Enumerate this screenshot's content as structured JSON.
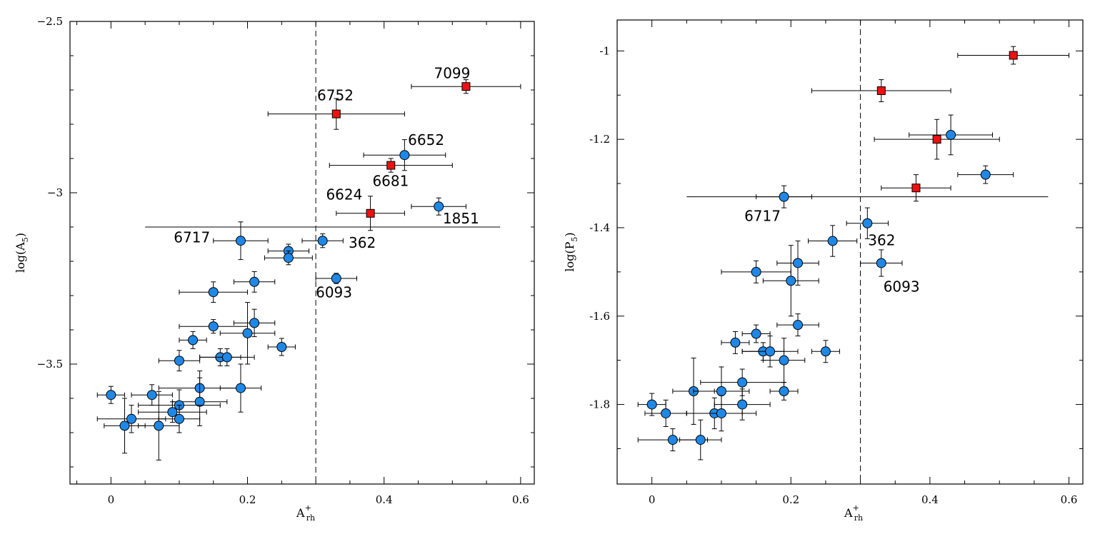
{
  "chart_data": [
    {
      "type": "scatter",
      "id": "left",
      "xlabel_main": "A",
      "xlabel_sub": "rh",
      "xlabel_sup": "+",
      "ylabel_main": "log(A",
      "ylabel_sub": "5",
      "ylabel_close": ")",
      "xlim": [
        -0.06,
        0.62
      ],
      "ylim": [
        -3.85,
        -2.5
      ],
      "xticks": [
        0,
        0.2,
        0.4,
        0.6
      ],
      "xtick_labels": [
        "0",
        "0.2",
        "0.4",
        "0.6"
      ],
      "yticks": [
        -2.5,
        -3,
        -3.5
      ],
      "ytick_labels": [
        "−2.5",
        "−3",
        "−3.5"
      ],
      "vline_x": 0.3,
      "hline": {
        "y": -3.1,
        "x0": 0.05,
        "x1": 0.57
      },
      "colors": {
        "blue": "#1f88e6",
        "red": "#ee1111"
      },
      "points": [
        {
          "x": 0.52,
          "y": -2.69,
          "xerr": 0.08,
          "yerr": 0.02,
          "color": "red",
          "marker": "square"
        },
        {
          "x": 0.33,
          "y": -2.77,
          "xerr": 0.1,
          "yerr": 0.045,
          "color": "red",
          "marker": "square"
        },
        {
          "x": 0.43,
          "y": -2.89,
          "xerr": 0.06,
          "yerr": 0.045,
          "color": "blue",
          "marker": "circle"
        },
        {
          "x": 0.41,
          "y": -2.92,
          "xerr": 0.09,
          "yerr": 0.02,
          "color": "red",
          "marker": "square"
        },
        {
          "x": 0.38,
          "y": -3.06,
          "xerr": 0.05,
          "yerr": 0.05,
          "color": "red",
          "marker": "square"
        },
        {
          "x": 0.48,
          "y": -3.04,
          "xerr": 0.04,
          "yerr": 0.025,
          "color": "blue",
          "marker": "circle"
        },
        {
          "x": 0.19,
          "y": -3.14,
          "xerr": 0.04,
          "yerr": 0.055,
          "color": "blue",
          "marker": "circle"
        },
        {
          "x": 0.31,
          "y": -3.14,
          "xerr": 0.03,
          "yerr": 0.02,
          "color": "blue",
          "marker": "circle"
        },
        {
          "x": 0.26,
          "y": -3.17,
          "xerr": 0.03,
          "yerr": 0.02,
          "color": "blue",
          "marker": "circle"
        },
        {
          "x": 0.26,
          "y": -3.19,
          "xerr": 0.035,
          "yerr": 0.02,
          "color": "blue",
          "marker": "circle"
        },
        {
          "x": 0.33,
          "y": -3.25,
          "xerr": 0.03,
          "yerr": 0.015,
          "color": "blue",
          "marker": "circle"
        },
        {
          "x": 0.21,
          "y": -3.26,
          "xerr": 0.03,
          "yerr": 0.03,
          "color": "blue",
          "marker": "circle"
        },
        {
          "x": 0.15,
          "y": -3.29,
          "xerr": 0.05,
          "yerr": 0.03,
          "color": "blue",
          "marker": "circle"
        },
        {
          "x": 0.15,
          "y": -3.39,
          "xerr": 0.05,
          "yerr": 0.02,
          "color": "blue",
          "marker": "circle"
        },
        {
          "x": 0.21,
          "y": -3.38,
          "xerr": 0.03,
          "yerr": 0.04,
          "color": "blue",
          "marker": "circle"
        },
        {
          "x": 0.2,
          "y": -3.41,
          "xerr": 0.04,
          "yerr": 0.09,
          "color": "blue",
          "marker": "circle"
        },
        {
          "x": 0.12,
          "y": -3.43,
          "xerr": 0.02,
          "yerr": 0.025,
          "color": "blue",
          "marker": "circle"
        },
        {
          "x": 0.25,
          "y": -3.45,
          "xerr": 0.02,
          "yerr": 0.025,
          "color": "blue",
          "marker": "circle"
        },
        {
          "x": 0.16,
          "y": -3.48,
          "xerr": 0.03,
          "yerr": 0.025,
          "color": "blue",
          "marker": "circle"
        },
        {
          "x": 0.17,
          "y": -3.48,
          "xerr": 0.04,
          "yerr": 0.025,
          "color": "blue",
          "marker": "circle"
        },
        {
          "x": 0.1,
          "y": -3.49,
          "xerr": 0.03,
          "yerr": 0.03,
          "color": "blue",
          "marker": "circle"
        },
        {
          "x": 0.0,
          "y": -3.59,
          "xerr": 0.02,
          "yerr": 0.025,
          "color": "blue",
          "marker": "circle"
        },
        {
          "x": 0.06,
          "y": -3.59,
          "xerr": 0.03,
          "yerr": 0.03,
          "color": "blue",
          "marker": "circle"
        },
        {
          "x": 0.13,
          "y": -3.57,
          "xerr": 0.06,
          "yerr": 0.05,
          "color": "blue",
          "marker": "circle"
        },
        {
          "x": 0.19,
          "y": -3.57,
          "xerr": 0.03,
          "yerr": 0.07,
          "color": "blue",
          "marker": "circle"
        },
        {
          "x": 0.13,
          "y": -3.61,
          "xerr": 0.04,
          "yerr": 0.07,
          "color": "blue",
          "marker": "circle"
        },
        {
          "x": 0.1,
          "y": -3.62,
          "xerr": 0.06,
          "yerr": 0.045,
          "color": "blue",
          "marker": "circle"
        },
        {
          "x": 0.09,
          "y": -3.64,
          "xerr": 0.05,
          "yerr": 0.03,
          "color": "blue",
          "marker": "circle"
        },
        {
          "x": 0.03,
          "y": -3.66,
          "xerr": 0.05,
          "yerr": 0.04,
          "color": "blue",
          "marker": "circle"
        },
        {
          "x": 0.1,
          "y": -3.66,
          "xerr": 0.03,
          "yerr": 0.04,
          "color": "blue",
          "marker": "circle"
        },
        {
          "x": 0.02,
          "y": -3.68,
          "xerr": 0.03,
          "yerr": 0.08,
          "color": "blue",
          "marker": "circle"
        },
        {
          "x": 0.07,
          "y": -3.68,
          "xerr": 0.03,
          "yerr": 0.1,
          "color": "blue",
          "marker": "circle"
        }
      ],
      "annotations": [
        {
          "text": "7099",
          "x": 0.473,
          "y": -2.666
        },
        {
          "text": "6752",
          "x": 0.302,
          "y": -2.73
        },
        {
          "text": "6652",
          "x": 0.435,
          "y": -2.86
        },
        {
          "text": "6681",
          "x": 0.383,
          "y": -2.98
        },
        {
          "text": "6624",
          "x": 0.315,
          "y": -3.02
        },
        {
          "text": "1851",
          "x": 0.486,
          "y": -3.09
        },
        {
          "text": "6717",
          "x": 0.092,
          "y": -3.145
        },
        {
          "text": "362",
          "x": 0.348,
          "y": -3.16
        },
        {
          "text": "6093",
          "x": 0.3,
          "y": -3.305
        }
      ]
    },
    {
      "type": "scatter",
      "id": "right",
      "xlabel_main": "A",
      "xlabel_sub": "rh",
      "xlabel_sup": "+",
      "ylabel_main": "log(P",
      "ylabel_sub": "5",
      "ylabel_close": ")",
      "xlim": [
        -0.05,
        0.62
      ],
      "ylim": [
        -1.98,
        -0.93
      ],
      "xticks": [
        0,
        0.2,
        0.4,
        0.6
      ],
      "xtick_labels": [
        "0",
        "0.2",
        "0.4",
        "0.6"
      ],
      "yticks": [
        -1,
        -1.2,
        -1.4,
        -1.6,
        -1.8
      ],
      "ytick_labels": [
        "-1",
        "-1.2",
        "-1.4",
        "-1.6",
        "-1.8"
      ],
      "vline_x": 0.3,
      "hline": {
        "y": -1.33,
        "x0": 0.05,
        "x1": 0.57
      },
      "colors": {
        "blue": "#1f88e6",
        "red": "#ee1111"
      },
      "points": [
        {
          "x": 0.52,
          "y": -1.01,
          "xerr": 0.08,
          "yerr": 0.02,
          "color": "red",
          "marker": "square"
        },
        {
          "x": 0.33,
          "y": -1.09,
          "xerr": 0.1,
          "yerr": 0.025,
          "color": "red",
          "marker": "square"
        },
        {
          "x": 0.43,
          "y": -1.19,
          "xerr": 0.06,
          "yerr": 0.045,
          "color": "blue",
          "marker": "circle"
        },
        {
          "x": 0.41,
          "y": -1.2,
          "xerr": 0.09,
          "yerr": 0.045,
          "color": "red",
          "marker": "square"
        },
        {
          "x": 0.48,
          "y": -1.28,
          "xerr": 0.04,
          "yerr": 0.02,
          "color": "blue",
          "marker": "circle"
        },
        {
          "x": 0.38,
          "y": -1.31,
          "xerr": 0.05,
          "yerr": 0.03,
          "color": "red",
          "marker": "square"
        },
        {
          "x": 0.19,
          "y": -1.33,
          "xerr": 0.04,
          "yerr": 0.025,
          "color": "blue",
          "marker": "circle"
        },
        {
          "x": 0.31,
          "y": -1.39,
          "xerr": 0.03,
          "yerr": 0.035,
          "color": "blue",
          "marker": "circle"
        },
        {
          "x": 0.26,
          "y": -1.43,
          "xerr": 0.035,
          "yerr": 0.035,
          "color": "blue",
          "marker": "circle"
        },
        {
          "x": 0.33,
          "y": -1.48,
          "xerr": 0.03,
          "yerr": 0.03,
          "color": "blue",
          "marker": "circle"
        },
        {
          "x": 0.21,
          "y": -1.48,
          "xerr": 0.03,
          "yerr": 0.05,
          "color": "blue",
          "marker": "circle"
        },
        {
          "x": 0.15,
          "y": -1.5,
          "xerr": 0.05,
          "yerr": 0.025,
          "color": "blue",
          "marker": "circle"
        },
        {
          "x": 0.2,
          "y": -1.52,
          "xerr": 0.04,
          "yerr": 0.08,
          "color": "blue",
          "marker": "circle"
        },
        {
          "x": 0.21,
          "y": -1.62,
          "xerr": 0.03,
          "yerr": 0.025,
          "color": "blue",
          "marker": "circle"
        },
        {
          "x": 0.15,
          "y": -1.64,
          "xerr": 0.02,
          "yerr": 0.02,
          "color": "blue",
          "marker": "circle"
        },
        {
          "x": 0.12,
          "y": -1.66,
          "xerr": 0.02,
          "yerr": 0.025,
          "color": "blue",
          "marker": "circle"
        },
        {
          "x": 0.16,
          "y": -1.68,
          "xerr": 0.03,
          "yerr": 0.02,
          "color": "blue",
          "marker": "circle"
        },
        {
          "x": 0.17,
          "y": -1.68,
          "xerr": 0.04,
          "yerr": 0.035,
          "color": "blue",
          "marker": "circle"
        },
        {
          "x": 0.25,
          "y": -1.68,
          "xerr": 0.02,
          "yerr": 0.025,
          "color": "blue",
          "marker": "circle"
        },
        {
          "x": 0.19,
          "y": -1.7,
          "xerr": 0.03,
          "yerr": 0.05,
          "color": "blue",
          "marker": "circle"
        },
        {
          "x": 0.13,
          "y": -1.75,
          "xerr": 0.06,
          "yerr": 0.03,
          "color": "blue",
          "marker": "circle"
        },
        {
          "x": 0.19,
          "y": -1.77,
          "xerr": 0.02,
          "yerr": 0.02,
          "color": "blue",
          "marker": "circle"
        },
        {
          "x": 0.06,
          "y": -1.77,
          "xerr": 0.03,
          "yerr": 0.075,
          "color": "blue",
          "marker": "circle"
        },
        {
          "x": 0.1,
          "y": -1.77,
          "xerr": 0.04,
          "yerr": 0.055,
          "color": "blue",
          "marker": "circle"
        },
        {
          "x": 0.0,
          "y": -1.8,
          "xerr": 0.02,
          "yerr": 0.025,
          "color": "blue",
          "marker": "circle"
        },
        {
          "x": 0.13,
          "y": -1.8,
          "xerr": 0.04,
          "yerr": 0.035,
          "color": "blue",
          "marker": "circle"
        },
        {
          "x": 0.02,
          "y": -1.82,
          "xerr": 0.03,
          "yerr": 0.03,
          "color": "blue",
          "marker": "circle"
        },
        {
          "x": 0.09,
          "y": -1.82,
          "xerr": 0.04,
          "yerr": 0.035,
          "color": "blue",
          "marker": "circle"
        },
        {
          "x": 0.1,
          "y": -1.82,
          "xerr": 0.05,
          "yerr": 0.04,
          "color": "blue",
          "marker": "circle"
        },
        {
          "x": 0.03,
          "y": -1.88,
          "xerr": 0.05,
          "yerr": 0.025,
          "color": "blue",
          "marker": "circle"
        },
        {
          "x": 0.07,
          "y": -1.88,
          "xerr": 0.03,
          "yerr": 0.045,
          "color": "blue",
          "marker": "circle"
        }
      ],
      "annotations": [
        {
          "text": "6717",
          "x": 0.133,
          "y": -1.385
        },
        {
          "text": "362",
          "x": 0.311,
          "y": -1.44
        },
        {
          "text": "6093",
          "x": 0.333,
          "y": -1.545
        }
      ]
    }
  ]
}
